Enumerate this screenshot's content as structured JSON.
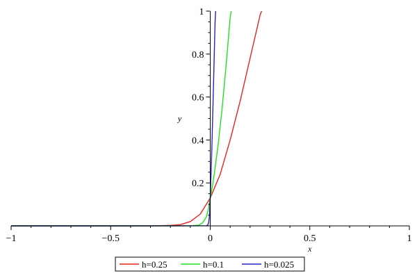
{
  "chart_data": {
    "type": "line",
    "title": "",
    "xlabel": "x",
    "ylabel": "y",
    "xlim": [
      -1,
      1
    ],
    "ylim": [
      0,
      1
    ],
    "x_ticks": [
      {
        "value": -1,
        "label": "−1"
      },
      {
        "value": -0.5,
        "label": "−0.5"
      },
      {
        "value": 0,
        "label": "0"
      },
      {
        "value": 0.5,
        "label": "0.5"
      },
      {
        "value": 1,
        "label": "1"
      }
    ],
    "y_ticks": [
      {
        "value": 0.2,
        "label": "0.2"
      },
      {
        "value": 0.4,
        "label": "0.4"
      },
      {
        "value": 0.6,
        "label": "0.6"
      },
      {
        "value": 0.8,
        "label": "0.8"
      },
      {
        "value": 1,
        "label": "1"
      }
    ],
    "grid": false,
    "legend_position": "bottom",
    "series": [
      {
        "name": "h=0.25",
        "color": "#e8221c",
        "x": [
          -1,
          -0.5,
          -0.3,
          -0.2,
          -0.15,
          -0.1,
          -0.05,
          0,
          0.05,
          0.1,
          0.15,
          0.2,
          0.25,
          0.258
        ],
        "y": [
          0,
          0,
          0.0002,
          0.002,
          0.006,
          0.02,
          0.055,
          0.13,
          0.24,
          0.4,
          0.58,
          0.78,
          0.98,
          1.0
        ]
      },
      {
        "name": "h=0.1",
        "color": "#22e022",
        "x": [
          -1,
          -0.5,
          -0.1,
          -0.06,
          -0.04,
          -0.02,
          -0.01,
          0,
          0.01,
          0.02,
          0.04,
          0.06,
          0.08,
          0.1,
          0.105
        ],
        "y": [
          0,
          0,
          0.0003,
          0.003,
          0.012,
          0.04,
          0.075,
          0.13,
          0.18,
          0.24,
          0.38,
          0.55,
          0.75,
          0.97,
          1.0
        ]
      },
      {
        "name": "h=0.025",
        "color": "#2323c8",
        "x": [
          -1,
          -0.5,
          -0.02,
          -0.012,
          -0.008,
          -0.004,
          0,
          0.004,
          0.008,
          0.012,
          0.016,
          0.02,
          0.024,
          0.027
        ],
        "y": [
          0,
          0,
          0.0005,
          0.004,
          0.015,
          0.045,
          0.13,
          0.24,
          0.36,
          0.5,
          0.64,
          0.79,
          0.94,
          1.0
        ]
      }
    ]
  }
}
